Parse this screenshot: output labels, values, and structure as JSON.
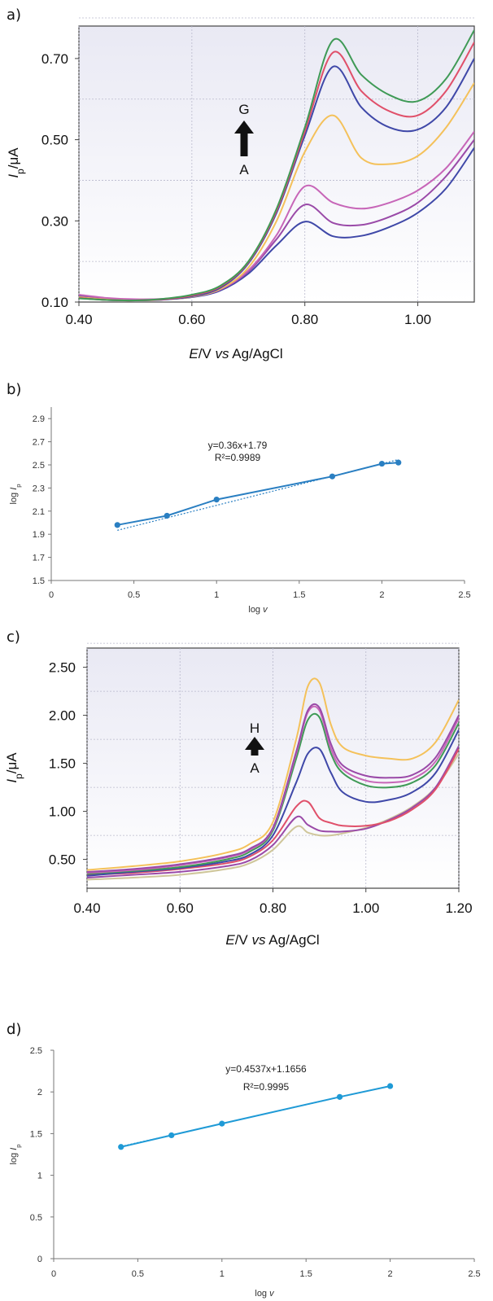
{
  "chart_data": [
    {
      "id": "a",
      "panel_label": "a)",
      "type": "line",
      "xlabel_parts": [
        "E",
        "/V ",
        "vs",
        " Ag/AgCl"
      ],
      "ylabel_parts": [
        "I",
        "p",
        "/μA"
      ],
      "xlim": [
        0.4,
        1.1
      ],
      "ylim": [
        0.1,
        0.78
      ],
      "xticks": [
        0.4,
        0.6,
        0.8,
        1.0
      ],
      "xtick_labels": [
        "0.40",
        "0.60",
        "0.80",
        "1.00"
      ],
      "yticks": [
        0.1,
        0.3,
        0.5,
        0.7
      ],
      "ytick_labels": [
        "0.10",
        "0.30",
        "0.50",
        "0.70"
      ],
      "grid": true,
      "annotation": {
        "top": "G",
        "bottom": "A",
        "arrow": "up"
      },
      "x": [
        0.4,
        0.45,
        0.5,
        0.55,
        0.6,
        0.65,
        0.7,
        0.75,
        0.8,
        0.85,
        0.9,
        0.95,
        1.0,
        1.05,
        1.1
      ],
      "series": [
        {
          "color": "#3f48a8",
          "values": [
            0.115,
            0.108,
            0.106,
            0.107,
            0.112,
            0.128,
            0.17,
            0.24,
            0.298,
            0.262,
            0.263,
            0.285,
            0.32,
            0.38,
            0.48
          ]
        },
        {
          "color": "#9a4aa8",
          "values": [
            0.113,
            0.107,
            0.105,
            0.107,
            0.113,
            0.13,
            0.175,
            0.255,
            0.34,
            0.295,
            0.29,
            0.31,
            0.345,
            0.41,
            0.5
          ]
        },
        {
          "color": "#c766b8",
          "values": [
            0.118,
            0.11,
            0.107,
            0.108,
            0.114,
            0.131,
            0.178,
            0.265,
            0.385,
            0.345,
            0.33,
            0.345,
            0.375,
            0.43,
            0.52
          ]
        },
        {
          "color": "#f4c15a",
          "values": [
            0.112,
            0.106,
            0.104,
            0.106,
            0.113,
            0.132,
            0.185,
            0.3,
            0.47,
            0.56,
            0.455,
            0.44,
            0.46,
            0.53,
            0.64
          ]
        },
        {
          "color": "#3f48a8",
          "values": [
            0.11,
            0.105,
            0.104,
            0.106,
            0.114,
            0.135,
            0.195,
            0.32,
            0.51,
            0.68,
            0.58,
            0.53,
            0.525,
            0.58,
            0.7
          ]
        },
        {
          "color": "#e0506a",
          "values": [
            0.11,
            0.105,
            0.104,
            0.107,
            0.116,
            0.138,
            0.198,
            0.325,
            0.52,
            0.715,
            0.62,
            0.57,
            0.56,
            0.62,
            0.74
          ]
        },
        {
          "color": "#3f9a56",
          "values": [
            0.109,
            0.105,
            0.104,
            0.108,
            0.118,
            0.14,
            0.2,
            0.33,
            0.53,
            0.745,
            0.66,
            0.61,
            0.595,
            0.65,
            0.77
          ]
        }
      ]
    },
    {
      "id": "b",
      "panel_label": "b)",
      "type": "scatter",
      "xlabel_parts": [
        "log ",
        "v"
      ],
      "ylabel_parts": [
        "log ",
        "I",
        "p"
      ],
      "xlim": [
        0,
        2.5
      ],
      "ylim": [
        1.5,
        3.0
      ],
      "xticks": [
        0,
        0.5,
        1,
        1.5,
        2,
        2.5
      ],
      "xtick_labels": [
        "0",
        "0.5",
        "1",
        "1.5",
        "2",
        "2.5"
      ],
      "yticks": [
        1.5,
        1.7,
        1.9,
        2.1,
        2.3,
        2.5,
        2.7,
        2.9
      ],
      "ytick_labels": [
        "1.5",
        "1.7",
        "1.9",
        "2.1",
        "2.3",
        "2.5",
        "2.7",
        "2.9"
      ],
      "equation": "y=0.36x+1.79",
      "r_squared": "R²=0.9989",
      "trendline": {
        "slope": 0.36,
        "intercept": 1.79
      },
      "color": "#2a7fc2",
      "x": [
        0.4,
        0.7,
        1.0,
        1.7,
        2.0,
        2.1
      ],
      "y": [
        1.98,
        2.06,
        2.2,
        2.4,
        2.51,
        2.52
      ]
    },
    {
      "id": "c",
      "panel_label": "c)",
      "type": "line",
      "xlabel_parts": [
        "E",
        "/V ",
        "vs",
        " Ag/AgCl"
      ],
      "ylabel_parts": [
        "I",
        "p",
        "/μA"
      ],
      "xlim": [
        0.4,
        1.2
      ],
      "ylim": [
        0.2,
        2.7
      ],
      "xticks": [
        0.4,
        0.6,
        0.8,
        1.0,
        1.2
      ],
      "xtick_labels": [
        "0.40",
        "0.60",
        "0.80",
        "1.00",
        "1.20"
      ],
      "yticks": [
        0.5,
        1.0,
        1.5,
        2.0,
        2.5
      ],
      "ytick_labels": [
        "0.50",
        "1.00",
        "1.50",
        "2.00",
        "2.50"
      ],
      "grid": true,
      "annotation": {
        "top": "H",
        "bottom": "A",
        "arrow": "up"
      },
      "x": [
        0.4,
        0.5,
        0.6,
        0.7,
        0.75,
        0.8,
        0.85,
        0.875,
        0.9,
        0.925,
        0.95,
        1.0,
        1.05,
        1.1,
        1.15,
        1.2
      ],
      "series": [
        {
          "color": "#cfc69a",
          "values": [
            0.29,
            0.31,
            0.34,
            0.4,
            0.46,
            0.6,
            0.84,
            0.78,
            0.75,
            0.75,
            0.77,
            0.83,
            0.92,
            1.05,
            1.25,
            1.6
          ]
        },
        {
          "color": "#9a4aa8",
          "values": [
            0.31,
            0.34,
            0.37,
            0.43,
            0.49,
            0.65,
            0.94,
            0.86,
            0.8,
            0.79,
            0.79,
            0.82,
            0.91,
            1.04,
            1.25,
            1.68
          ]
        },
        {
          "color": "#e0506a",
          "values": [
            0.34,
            0.36,
            0.4,
            0.46,
            0.53,
            0.7,
            1.05,
            1.1,
            0.93,
            0.88,
            0.85,
            0.85,
            0.9,
            1.02,
            1.23,
            1.65
          ]
        },
        {
          "color": "#3f48a8",
          "values": [
            0.33,
            0.37,
            0.41,
            0.48,
            0.55,
            0.75,
            1.3,
            1.6,
            1.65,
            1.4,
            1.2,
            1.1,
            1.12,
            1.2,
            1.4,
            1.85
          ]
        },
        {
          "color": "#3f9a56",
          "values": [
            0.35,
            0.38,
            0.42,
            0.5,
            0.58,
            0.8,
            1.55,
            1.95,
            1.98,
            1.6,
            1.4,
            1.27,
            1.25,
            1.3,
            1.48,
            1.92
          ]
        },
        {
          "color": "#c766b8",
          "values": [
            0.36,
            0.39,
            0.44,
            0.52,
            0.6,
            0.82,
            1.6,
            2.03,
            2.05,
            1.65,
            1.44,
            1.32,
            1.3,
            1.34,
            1.52,
            1.97
          ]
        },
        {
          "color": "#9a4aa8",
          "values": [
            0.37,
            0.4,
            0.45,
            0.53,
            0.61,
            0.83,
            1.62,
            2.05,
            2.08,
            1.7,
            1.48,
            1.37,
            1.35,
            1.38,
            1.56,
            2.0
          ]
        },
        {
          "color": "#f4c15a",
          "values": [
            0.39,
            0.43,
            0.48,
            0.57,
            0.66,
            0.89,
            1.75,
            2.3,
            2.34,
            1.9,
            1.67,
            1.58,
            1.55,
            1.55,
            1.72,
            2.16
          ]
        }
      ]
    },
    {
      "id": "d",
      "panel_label": "d)",
      "type": "scatter",
      "xlabel_parts": [
        "log ",
        "v"
      ],
      "ylabel_parts": [
        "log ",
        "I",
        "p"
      ],
      "xlim": [
        0,
        2.5
      ],
      "ylim": [
        0,
        2.5
      ],
      "xticks": [
        0,
        0.5,
        1,
        1.5,
        2,
        2.5
      ],
      "xtick_labels": [
        "0",
        "0.5",
        "1",
        "1.5",
        "2",
        "2.5"
      ],
      "yticks": [
        0,
        0.5,
        1,
        1.5,
        2,
        2.5
      ],
      "ytick_labels": [
        "0",
        "0.5",
        "1",
        "1.5",
        "2",
        "2.5"
      ],
      "equation": "y=0.4537x+1.1656",
      "r_squared": "R²=0.9995",
      "trendline": {
        "slope": 0.4537,
        "intercept": 1.1656
      },
      "color": "#1f9ad6",
      "x": [
        0.4,
        0.7,
        1.0,
        1.7,
        2.0
      ],
      "y": [
        1.34,
        1.48,
        1.62,
        1.94,
        2.07
      ]
    }
  ]
}
